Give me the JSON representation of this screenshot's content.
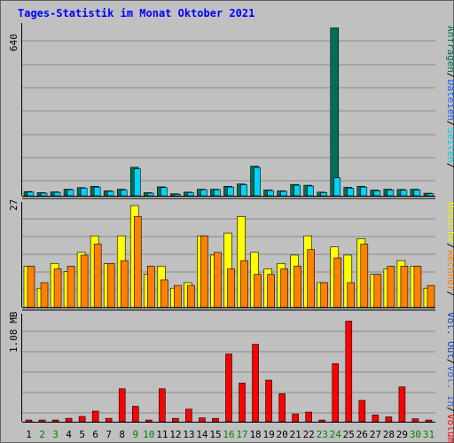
{
  "chart_data": [
    {
      "type": "bar",
      "title": "Tages-Statistik im Monat Oktober 2021",
      "categories": [
        "1",
        "2",
        "3",
        "4",
        "5",
        "6",
        "7",
        "8",
        "9",
        "10",
        "11",
        "12",
        "13",
        "14",
        "15",
        "16",
        "17",
        "18",
        "19",
        "20",
        "21",
        "22",
        "23",
        "24",
        "25",
        "26",
        "27",
        "28",
        "29",
        "30",
        "31"
      ],
      "weekend_days": [
        "2",
        "3",
        "9",
        "10",
        "16",
        "17",
        "23",
        "24",
        "30",
        "31"
      ],
      "ymax_label": "640",
      "series": [
        {
          "name": "Anfragen",
          "color": "#006f54",
          "values": [
            16,
            12,
            15,
            25,
            31,
            36,
            19,
            25,
            108,
            12,
            34,
            8,
            14,
            25,
            25,
            36,
            45,
            112,
            22,
            19,
            43,
            40,
            14,
            635,
            32,
            36,
            22,
            25,
            24,
            25,
            10
          ]
        },
        {
          "name": "Dateien",
          "color": "#00d4ff",
          "values": [
            14,
            10,
            13,
            23,
            29,
            33,
            17,
            22,
            102,
            10,
            31,
            6,
            12,
            23,
            23,
            33,
            42,
            107,
            20,
            17,
            40,
            37,
            12,
            68,
            29,
            33,
            19,
            22,
            21,
            22,
            8
          ]
        }
      ]
    },
    {
      "type": "bar",
      "ymax_label": "27",
      "series": [
        {
          "name": "Seiten",
          "color": "#00d4ff",
          "values": []
        },
        {
          "name": "Besuche",
          "color": "#ffff00",
          "values": [
            15,
            7,
            16,
            13,
            20,
            26,
            16,
            26,
            37,
            12,
            15,
            7,
            9,
            26,
            19,
            27,
            33,
            20,
            14,
            16,
            19,
            26,
            9,
            22,
            19,
            25,
            12,
            14,
            17,
            15,
            7
          ]
        },
        {
          "name": "Rechner",
          "color": "#ff8000",
          "values": [
            15,
            9,
            14,
            15,
            19,
            23,
            16,
            17,
            33,
            15,
            10,
            8,
            8,
            26,
            20,
            14,
            17,
            12,
            12,
            14,
            15,
            21,
            9,
            18,
            9,
            23,
            12,
            15,
            15,
            15,
            8
          ]
        }
      ]
    },
    {
      "type": "bar",
      "ymax_label": "1.08 MB",
      "series": [
        {
          "name": "Vol. Out",
          "color": "#0000ff",
          "values": []
        },
        {
          "name": "Vol. In",
          "color": "#0040ff",
          "values": []
        },
        {
          "name": "Volumen",
          "color": "#ff0000",
          "values": [
            0.018,
            0.018,
            0.018,
            0.035,
            0.055,
            0.11,
            0.035,
            0.34,
            0.16,
            0.018,
            0.34,
            0.035,
            0.13,
            0.04,
            0.035,
            0.7,
            0.4,
            0.8,
            0.43,
            0.29,
            0.08,
            0.1,
            0.018,
            0.6,
            1.04,
            0.22,
            0.07,
            0.05,
            0.36,
            0.03,
            0.018
          ]
        }
      ]
    }
  ],
  "side_labels": [
    {
      "text": "Anfragen",
      "color": "#006f54"
    },
    {
      "text": "Dateien",
      "color": "#1060ff"
    },
    {
      "text": "Seiten",
      "color": "#00ccee"
    },
    {
      "text": "Besuche",
      "color": "#f0f000"
    },
    {
      "text": "Rechner",
      "color": "#ff8000"
    },
    {
      "text": "Vol. Out",
      "color": "#1040c0"
    },
    {
      "text": "Vol. In",
      "color": "#4060e0"
    },
    {
      "text": "Volumen",
      "color": "#ff0000"
    }
  ],
  "colors": {
    "background": "#c0c0c0",
    "grid": "#8a8a8a",
    "title": "#0000ff",
    "axis_text": "#000000",
    "weekday_label": "#000000",
    "weekend_label": "#008000",
    "divider": "#000000"
  }
}
